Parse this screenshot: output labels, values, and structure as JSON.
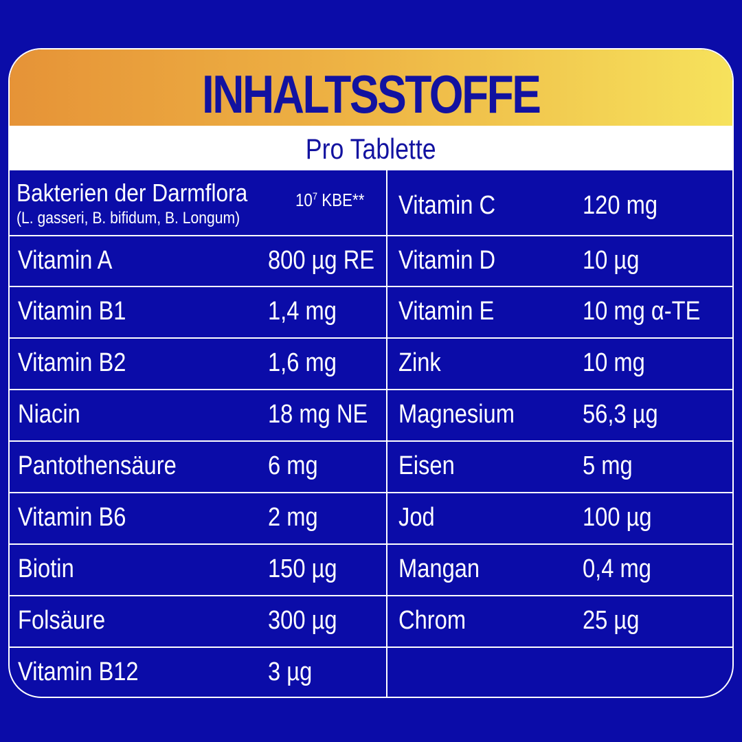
{
  "title": "INHALTSSTOFFE",
  "subtitle": "Pro Tablette",
  "colors": {
    "background": "#0b0ca8",
    "header_gradient_start": "#e69337",
    "header_gradient_end": "#f6e25c",
    "title": "#1212a0"
  },
  "bacteria": {
    "name": "Bakterien der Darmflora",
    "strains": "(L. gasseri, B. bifidum, B. Longum)",
    "value_base": "10",
    "value_exp": "7",
    "value_unit": " KBE**"
  },
  "left": [
    {
      "name": "Vitamin A",
      "value": "800 µg RE"
    },
    {
      "name": "Vitamin B1",
      "value": "1,4 mg"
    },
    {
      "name": "Vitamin B2",
      "value": "1,6 mg"
    },
    {
      "name": "Niacin",
      "value": "18 mg NE"
    },
    {
      "name": "Pantothensäure",
      "value": "6 mg"
    },
    {
      "name": "Vitamin B6",
      "value": "2 mg"
    },
    {
      "name": "Biotin",
      "value": "150 µg"
    },
    {
      "name": "Folsäure",
      "value": "300 µg"
    },
    {
      "name": "Vitamin B12",
      "value": "3 µg"
    }
  ],
  "right": [
    {
      "name": "Vitamin C",
      "value": "120 mg"
    },
    {
      "name": "Vitamin D",
      "value": "10 µg"
    },
    {
      "name": "Vitamin E",
      "value": "10 mg α-TE"
    },
    {
      "name": "Zink",
      "value": "10 mg"
    },
    {
      "name": "Magnesium",
      "value": "56,3 µg"
    },
    {
      "name": "Eisen",
      "value": "5 mg"
    },
    {
      "name": "Jod",
      "value": "100 µg"
    },
    {
      "name": "Mangan",
      "value": "0,4 mg"
    },
    {
      "name": "Chrom",
      "value": "25 µg"
    }
  ]
}
